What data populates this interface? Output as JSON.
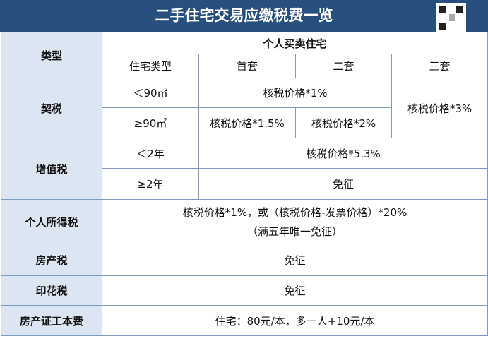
{
  "header": {
    "title": "二手住宅交易应缴税费一览"
  },
  "table": {
    "type_label": "类型",
    "group_header": "个人买卖住宅",
    "column_headers": [
      "住宅类型",
      "首套",
      "二套",
      "三套"
    ],
    "deed_tax": {
      "label": "契税",
      "small": "＜90㎡",
      "large": "≥90㎡",
      "small_first_second": "核税价格*1%",
      "third": "核税价格*3%",
      "large_first": "核税价格*1.5%",
      "large_second": "核税价格*2%"
    },
    "vat": {
      "label": "增值税",
      "under": "＜2年",
      "over": "≥2年",
      "under_value": "核税价格*5.3%",
      "over_value": "免征"
    },
    "income_tax": {
      "label": "个人所得税",
      "line1": "核税价格*1%，或（核税价格-发票价格）*20%",
      "line2": "（满五年唯一免征）"
    },
    "property_tax": {
      "label": "房产税",
      "value": "免征"
    },
    "stamp_tax": {
      "label": "印花税",
      "value": "免征"
    },
    "certificate_fee": {
      "label": "房产证工本费",
      "value": "住宅：80元/本，多一人+10元/本"
    }
  }
}
